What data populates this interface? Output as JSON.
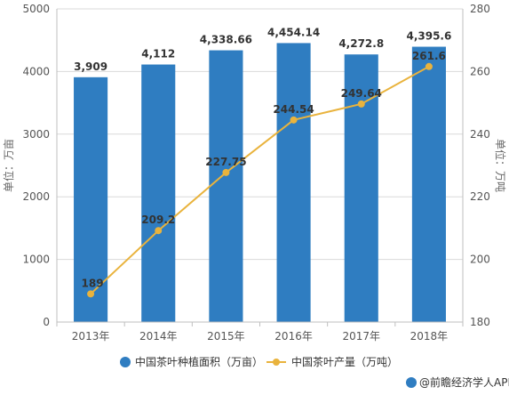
{
  "chart_data": {
    "type": "bar+line",
    "categories": [
      "2013年",
      "2014年",
      "2015年",
      "2016年",
      "2017年",
      "2018年"
    ],
    "series": [
      {
        "name": "中国茶叶种植面积（万亩）",
        "type": "bar",
        "axis": "left",
        "values": [
          3909,
          4112,
          4338.66,
          4454.14,
          4272.8,
          4395.6
        ],
        "labels": [
          "3,909",
          "4,112",
          "4,338.66",
          "4,454.14",
          "4,272.8",
          "4,395.6"
        ],
        "color": "#2f7dc1"
      },
      {
        "name": "中国茶叶产量（万吨）",
        "type": "line",
        "axis": "right",
        "values": [
          189,
          209.2,
          227.75,
          244.54,
          249.64,
          261.6
        ],
        "labels": [
          "189",
          "209.2",
          "227.75",
          "244.54",
          "249.64",
          "261.6"
        ],
        "color": "#e9b33d"
      }
    ],
    "y_left": {
      "label": "单位：万亩",
      "ylim": [
        0,
        5000
      ],
      "ticks": [
        0,
        1000,
        2000,
        3000,
        4000,
        5000
      ],
      "tick_labels": [
        "0",
        "1000",
        "2000",
        "3000",
        "4000",
        "5000"
      ]
    },
    "y_right": {
      "label": "单位：万吨",
      "ylim": [
        180,
        280
      ],
      "ticks": [
        180,
        200,
        220,
        240,
        260,
        280
      ],
      "tick_labels": [
        "180",
        "200",
        "220",
        "240",
        "260",
        "280"
      ]
    },
    "grid": true,
    "legend_position": "bottom"
  },
  "footer": {
    "source": "@前瞻经济学人APP"
  }
}
